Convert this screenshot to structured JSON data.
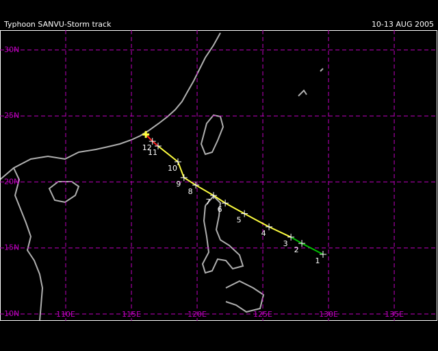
{
  "header": {
    "title": "Typhoon SANVU-Storm track",
    "date": "10-13 AUG 2005"
  },
  "map": {
    "lon_range": [
      105,
      138.33
    ],
    "lat_range": [
      9.48,
      31.5
    ],
    "lon_ticks": [
      {
        "value": 110,
        "label": "110E"
      },
      {
        "value": 115,
        "label": "115E"
      },
      {
        "value": 120,
        "label": "120E"
      },
      {
        "value": 125,
        "label": "125E"
      },
      {
        "value": 130,
        "label": "130E"
      },
      {
        "value": 135,
        "label": "135E"
      }
    ],
    "lat_ticks": [
      {
        "value": 10,
        "label": "10N"
      },
      {
        "value": 15,
        "label": "15N"
      },
      {
        "value": 20,
        "label": "20N"
      },
      {
        "value": 25,
        "label": "25N"
      },
      {
        "value": 30,
        "label": "30N"
      }
    ],
    "grid_color": "#c000c0",
    "coast_color": "#b0b0b0"
  },
  "track": [
    {
      "label": "1",
      "lon": 129.58,
      "lat": 14.52,
      "color": "#00c000"
    },
    {
      "label": "2",
      "lon": 127.97,
      "lat": 15.35,
      "color": "#00c000"
    },
    {
      "label": "3",
      "lon": 127.14,
      "lat": 15.82,
      "color": "#00c000"
    },
    {
      "label": "4",
      "lon": 125.47,
      "lat": 16.6,
      "color": "#ffff40"
    },
    {
      "label": "5",
      "lon": 123.6,
      "lat": 17.6,
      "color": "#ffff40"
    },
    {
      "label": "6",
      "lon": 122.14,
      "lat": 18.4,
      "color": "#ffff40"
    },
    {
      "label": "7",
      "lon": 121.25,
      "lat": 18.98,
      "color": "#ffff40"
    },
    {
      "label": "8",
      "lon": 119.9,
      "lat": 19.76,
      "color": "#ffff40"
    },
    {
      "label": "9",
      "lon": 119.0,
      "lat": 20.33,
      "color": "#ffff40"
    },
    {
      "label": "10",
      "lon": 118.54,
      "lat": 21.53,
      "color": "#ffff40"
    },
    {
      "label": "11",
      "lon": 117.03,
      "lat": 22.72,
      "color": "#ffff40"
    },
    {
      "label": "12",
      "lon": 116.6,
      "lat": 23.08,
      "color": "#ff2020"
    }
  ],
  "last_position": {
    "lon": 116.1,
    "lat": 23.6,
    "color": "#ffff40"
  }
}
